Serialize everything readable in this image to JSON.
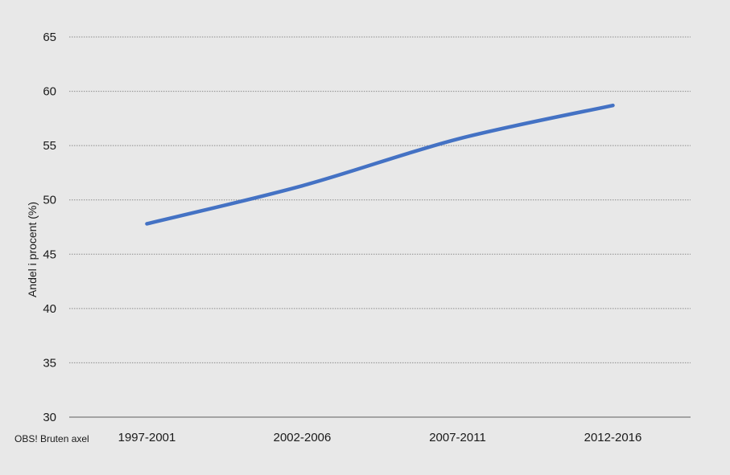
{
  "chart_data": {
    "type": "line",
    "categories": [
      "1997-2001",
      "2002-2006",
      "2007-2011",
      "2012-2016"
    ],
    "series": [
      {
        "values": [
          47.8,
          51.3,
          55.6,
          58.7
        ],
        "color": "#4472c4"
      }
    ],
    "ylabel": "Andel i procent (%)",
    "ylim": [
      30,
      65
    ],
    "yticks": [
      30,
      35,
      40,
      45,
      50,
      55,
      60,
      65
    ],
    "grid": true,
    "note": "OBS! Bruten axel"
  }
}
